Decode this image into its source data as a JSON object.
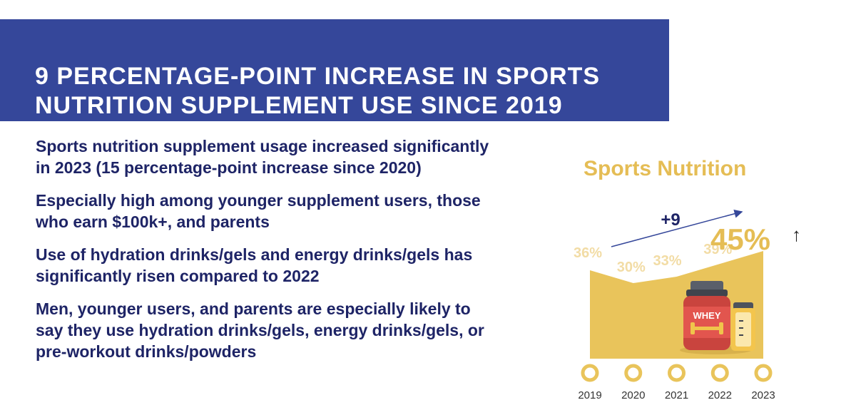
{
  "header": {
    "title": "9 PERCENTAGE-POINT INCREASE IN SPORTS NUTRITION SUPPLEMENT USE SINCE 2019"
  },
  "bullets": [
    "Sports nutrition supplement usage increased significantly in 2023 (15 percentage-point increase since 2020)",
    "Especially high among younger supplement users, those who earn $100k+, and parents",
    "Use of hydration drinks/gels and energy drinks/gels has significantly risen compared to 2022",
    "Men, younger users, and parents are especially likely to say they use hydration drinks/gels, energy drinks/gels, or pre-workout drinks/powders"
  ],
  "chart_data": {
    "type": "area",
    "title": "Sports Nutrition",
    "categories": [
      "2019",
      "2020",
      "2021",
      "2022",
      "2023"
    ],
    "values": [
      36,
      30,
      33,
      39,
      45
    ],
    "value_labels": [
      "36%",
      "30%",
      "33%",
      "39%",
      "45%"
    ],
    "annotation": "+9",
    "trend_glyph": "↑",
    "ylim": [
      0,
      50
    ],
    "colors": {
      "fill": "#e9c45b",
      "label": "#f2dca5",
      "highlight": "#e5bd55",
      "annotation": "#1e2466"
    },
    "icon": "whey-protein-and-shaker-icon"
  }
}
